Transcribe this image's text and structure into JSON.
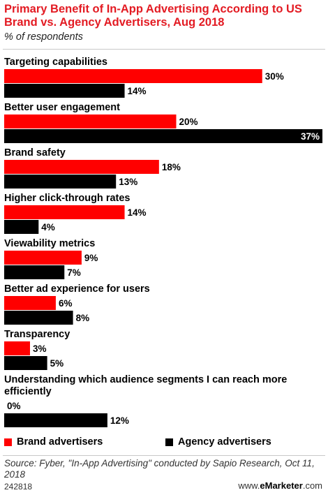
{
  "header": {
    "title": "Primary Benefit of In-App Advertising According to US Brand vs. Agency Advertisers, Aug 2018",
    "subtitle": "% of respondents"
  },
  "legend": {
    "brand_label": "Brand advertisers",
    "agency_label": "Agency advertisers"
  },
  "footer": {
    "source": "Source: Fyber, \"In-App Advertising\" conducted by Sapio Research, Oct 11, 2018",
    "chart_id": "242818",
    "brand_prefix": "www.",
    "brand_name": "eMarketer",
    "brand_suffix": ".com"
  },
  "colors": {
    "brand": "#ff0000",
    "agency": "#000000",
    "title": "#e31b23"
  },
  "chart_data": {
    "type": "bar",
    "orientation": "horizontal",
    "unit": "%",
    "categories": [
      "Targeting capabilities",
      "Better user engagement",
      "Brand safety",
      "Higher click-through rates",
      "Viewability metrics",
      "Better ad experience for users",
      "Transparency",
      "Understanding which audience segments I can reach more efficiently"
    ],
    "series": [
      {
        "name": "Brand advertisers",
        "values": [
          30,
          20,
          18,
          14,
          9,
          6,
          3,
          0
        ]
      },
      {
        "name": "Agency advertisers",
        "values": [
          14,
          37,
          13,
          4,
          7,
          8,
          5,
          12
        ]
      }
    ],
    "xlim": [
      0,
      37
    ],
    "grid": false,
    "legend_position": "bottom"
  }
}
